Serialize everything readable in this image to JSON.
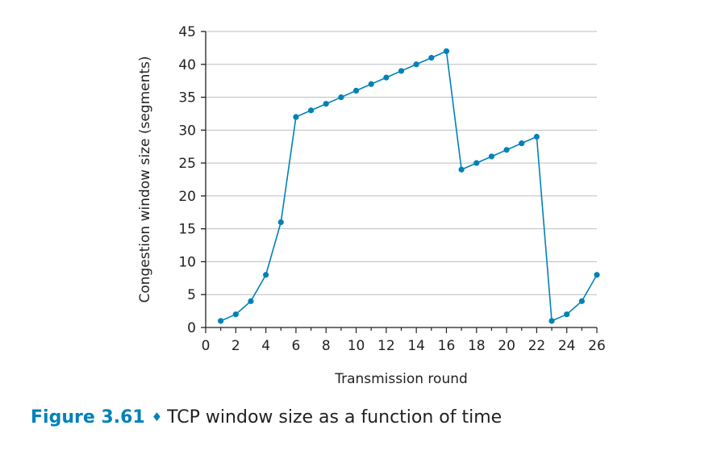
{
  "figure": {
    "label": "Figure 3.61",
    "separator": "♦",
    "text": "TCP window size as a function of time"
  },
  "chart_data": {
    "type": "line",
    "title": "",
    "xlabel": "Transmission round",
    "ylabel": "Congestion window size (segments)",
    "xlim": [
      0,
      26
    ],
    "ylim": [
      0,
      45
    ],
    "x_ticks": [
      0,
      2,
      4,
      6,
      8,
      10,
      12,
      14,
      16,
      18,
      20,
      22,
      24,
      26
    ],
    "y_ticks": [
      0,
      5,
      10,
      15,
      20,
      25,
      30,
      35,
      40,
      45
    ],
    "grid": true,
    "legend": "none",
    "series_color": "#0081b8",
    "series": [
      {
        "x": [
          1,
          2,
          3,
          4,
          5,
          6,
          7,
          8,
          9,
          10,
          11,
          12,
          13,
          14,
          15,
          16,
          17,
          18,
          19,
          20,
          21,
          22,
          23,
          24,
          25,
          26
        ],
        "y": [
          1,
          2,
          4,
          8,
          16,
          32,
          33,
          34,
          35,
          36,
          37,
          38,
          39,
          40,
          41,
          42,
          24,
          25,
          26,
          27,
          28,
          29,
          1,
          2,
          4,
          8
        ]
      }
    ]
  }
}
